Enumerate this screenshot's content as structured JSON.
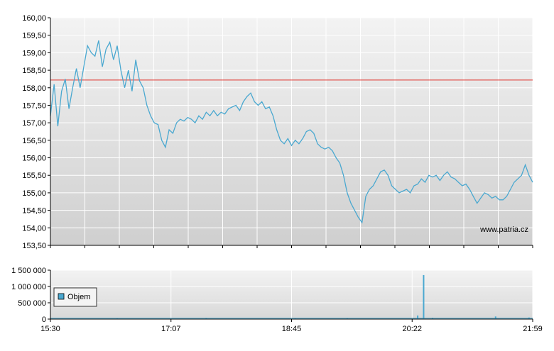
{
  "chart_data": [
    {
      "type": "line",
      "title": "",
      "xlabel": "",
      "ylabel": "",
      "ylim": [
        153.5,
        160.0
      ],
      "yticks": [
        "160,00",
        "159,50",
        "159,00",
        "158,50",
        "158,00",
        "157,50",
        "157,00",
        "156,50",
        "156,00",
        "155,50",
        "155,00",
        "154,50",
        "154,00",
        "153,50"
      ],
      "reference_line": {
        "value": 158.22,
        "color": "#e0302a"
      },
      "watermark": "www.patria.cz",
      "series": [
        {
          "color": "#4aa8d0",
          "points": [
            [
              0,
              157.2
            ],
            [
              1,
              158.1
            ],
            [
              2,
              156.9
            ],
            [
              3,
              157.9
            ],
            [
              4,
              158.25
            ],
            [
              5,
              157.4
            ],
            [
              6,
              158.0
            ],
            [
              7,
              158.55
            ],
            [
              8,
              158.0
            ],
            [
              9,
              158.6
            ],
            [
              10,
              159.2
            ],
            [
              11,
              159.0
            ],
            [
              12,
              158.9
            ],
            [
              13,
              159.35
            ],
            [
              14,
              158.6
            ],
            [
              15,
              159.1
            ],
            [
              16,
              159.3
            ],
            [
              17,
              158.8
            ],
            [
              18,
              159.2
            ],
            [
              19,
              158.5
            ],
            [
              20,
              158.0
            ],
            [
              21,
              158.5
            ],
            [
              22,
              157.9
            ],
            [
              23,
              158.8
            ],
            [
              24,
              158.2
            ],
            [
              25,
              158.0
            ],
            [
              26,
              157.5
            ],
            [
              27,
              157.2
            ],
            [
              28,
              157.0
            ],
            [
              29,
              156.95
            ],
            [
              30,
              156.5
            ],
            [
              31,
              156.3
            ],
            [
              32,
              156.8
            ],
            [
              33,
              156.7
            ],
            [
              34,
              157.0
            ],
            [
              35,
              157.1
            ],
            [
              36,
              157.05
            ],
            [
              37,
              157.15
            ],
            [
              38,
              157.1
            ],
            [
              39,
              157.0
            ],
            [
              40,
              157.2
            ],
            [
              41,
              157.1
            ],
            [
              42,
              157.3
            ],
            [
              43,
              157.2
            ],
            [
              44,
              157.35
            ],
            [
              45,
              157.2
            ],
            [
              46,
              157.3
            ],
            [
              47,
              157.25
            ],
            [
              48,
              157.4
            ],
            [
              49,
              157.45
            ],
            [
              50,
              157.5
            ],
            [
              51,
              157.35
            ],
            [
              52,
              157.6
            ],
            [
              53,
              157.75
            ],
            [
              54,
              157.85
            ],
            [
              55,
              157.6
            ],
            [
              56,
              157.5
            ],
            [
              57,
              157.6
            ],
            [
              58,
              157.4
            ],
            [
              59,
              157.45
            ],
            [
              60,
              157.2
            ],
            [
              61,
              156.8
            ],
            [
              62,
              156.5
            ],
            [
              63,
              156.4
            ],
            [
              64,
              156.55
            ],
            [
              65,
              156.35
            ],
            [
              66,
              156.5
            ],
            [
              67,
              156.4
            ],
            [
              68,
              156.55
            ],
            [
              69,
              156.75
            ],
            [
              70,
              156.8
            ],
            [
              71,
              156.7
            ],
            [
              72,
              156.4
            ],
            [
              73,
              156.3
            ],
            [
              74,
              156.25
            ],
            [
              75,
              156.3
            ],
            [
              76,
              156.2
            ],
            [
              77,
              156.0
            ],
            [
              78,
              155.85
            ],
            [
              79,
              155.5
            ],
            [
              80,
              155.0
            ],
            [
              81,
              154.7
            ],
            [
              82,
              154.5
            ],
            [
              83,
              154.3
            ],
            [
              84,
              154.15
            ],
            [
              85,
              154.9
            ],
            [
              86,
              155.1
            ],
            [
              87,
              155.2
            ],
            [
              88,
              155.4
            ],
            [
              89,
              155.6
            ],
            [
              90,
              155.65
            ],
            [
              91,
              155.5
            ],
            [
              92,
              155.2
            ],
            [
              93,
              155.1
            ],
            [
              94,
              155.0
            ],
            [
              95,
              155.05
            ],
            [
              96,
              155.1
            ],
            [
              97,
              155.0
            ],
            [
              98,
              155.2
            ],
            [
              99,
              155.25
            ],
            [
              100,
              155.4
            ],
            [
              101,
              155.3
            ],
            [
              102,
              155.5
            ],
            [
              103,
              155.45
            ],
            [
              104,
              155.5
            ],
            [
              105,
              155.35
            ],
            [
              106,
              155.5
            ],
            [
              107,
              155.6
            ],
            [
              108,
              155.45
            ],
            [
              109,
              155.4
            ],
            [
              110,
              155.3
            ],
            [
              111,
              155.2
            ],
            [
              112,
              155.25
            ],
            [
              113,
              155.1
            ],
            [
              114,
              154.9
            ],
            [
              115,
              154.7
            ],
            [
              116,
              154.85
            ],
            [
              117,
              155.0
            ],
            [
              118,
              154.95
            ],
            [
              119,
              154.85
            ],
            [
              120,
              154.9
            ],
            [
              121,
              154.8
            ],
            [
              122,
              154.8
            ],
            [
              123,
              154.9
            ],
            [
              124,
              155.1
            ],
            [
              125,
              155.3
            ],
            [
              126,
              155.4
            ],
            [
              127,
              155.5
            ],
            [
              128,
              155.8
            ],
            [
              129,
              155.5
            ],
            [
              130,
              155.3
            ]
          ]
        }
      ]
    },
    {
      "type": "bar",
      "title": "",
      "xlabel": "",
      "ylabel": "",
      "ylim": [
        0,
        1500000
      ],
      "yticks": [
        "1 500 000",
        "1 000 000",
        "500 000",
        "0"
      ],
      "legend": {
        "label": "Objem",
        "position": "top-left",
        "color": "#4aa8d0"
      },
      "xticks": [
        "15:30",
        "17:07",
        "18:45",
        "20:22",
        "21:59"
      ],
      "spikes": [
        [
          18.0,
          20000
        ],
        [
          42.0,
          30000
        ],
        [
          66.0,
          20000
        ],
        [
          80.0,
          25000
        ],
        [
          99.0,
          110000
        ],
        [
          100.6,
          1350000
        ],
        [
          103.0,
          40000
        ],
        [
          120.0,
          80000
        ],
        [
          129.0,
          50000
        ]
      ]
    }
  ]
}
